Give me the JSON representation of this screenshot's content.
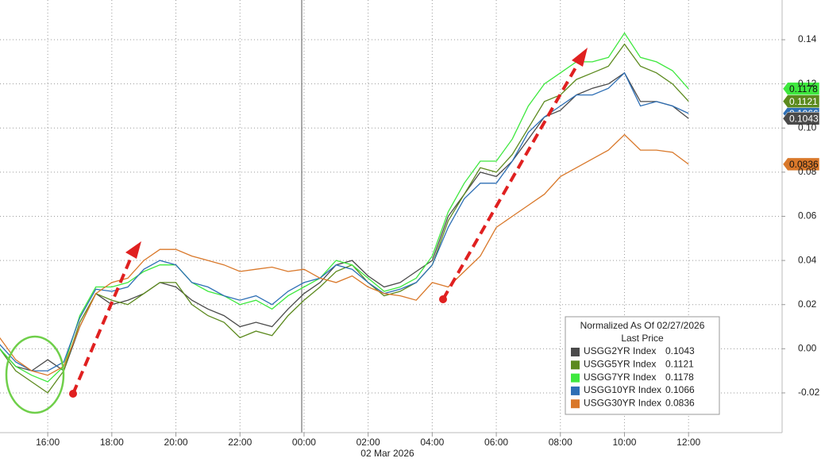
{
  "chart_data": {
    "type": "line",
    "grid": true,
    "legend": {
      "title": "Normalized As Of 02/27/2026",
      "subtitle": "Last Price"
    },
    "date_label": "02 Mar 2026",
    "xlim": [
      14.51,
      38.92
    ],
    "ylim": [
      -0.038,
      0.158
    ],
    "xticks": [
      {
        "value": 16,
        "label": "16:00"
      },
      {
        "value": 18,
        "label": "18:00"
      },
      {
        "value": 20,
        "label": "20:00"
      },
      {
        "value": 22,
        "label": "22:00"
      },
      {
        "value": 24,
        "label": "00:00"
      },
      {
        "value": 26,
        "label": "02:00"
      },
      {
        "value": 28,
        "label": "04:00"
      },
      {
        "value": 30,
        "label": "06:00"
      },
      {
        "value": 32,
        "label": "08:00"
      },
      {
        "value": 34,
        "label": "10:00"
      },
      {
        "value": 36,
        "label": "12:00"
      }
    ],
    "yticks": [
      -0.02,
      {
        "value": 0,
        "label": "0.00"
      },
      0.02,
      0.04,
      0.06,
      0.08,
      {
        "value": 0.1,
        "label": "0.10"
      },
      0.12,
      0.14
    ],
    "x": [
      14.5,
      15,
      15.5,
      16,
      16.5,
      17,
      17.5,
      18,
      18.5,
      19,
      19.5,
      20,
      20.5,
      21,
      21.5,
      22,
      22.5,
      23,
      23.5,
      24,
      24.5,
      25,
      25.5,
      26,
      26.5,
      27,
      27.5,
      28,
      28.5,
      29,
      29.5,
      30,
      30.5,
      31,
      31.5,
      32,
      32.5,
      33,
      33.5,
      34,
      34.5,
      35,
      35.5,
      36
    ],
    "series": [
      {
        "name": "USGG2YR Index",
        "color": "#4a4a4a",
        "values": [
          0.0,
          -0.008,
          -0.01,
          -0.005,
          -0.01,
          0.01,
          0.025,
          0.02,
          0.022,
          0.025,
          0.03,
          0.028,
          0.022,
          0.018,
          0.015,
          0.01,
          0.012,
          0.01,
          0.018,
          0.025,
          0.03,
          0.038,
          0.04,
          0.033,
          0.028,
          0.03,
          0.035,
          0.04,
          0.06,
          0.07,
          0.08,
          0.078,
          0.085,
          0.095,
          0.105,
          0.108,
          0.115,
          0.118,
          0.12,
          0.125,
          0.112,
          0.112,
          0.11,
          0.1043
        ]
      },
      {
        "name": "USGG5YR Index",
        "color": "#5c8a1e",
        "values": [
          0.0,
          -0.01,
          -0.015,
          -0.02,
          -0.01,
          0.012,
          0.025,
          0.022,
          0.02,
          0.025,
          0.03,
          0.03,
          0.02,
          0.015,
          0.012,
          0.005,
          0.008,
          0.006,
          0.015,
          0.022,
          0.028,
          0.035,
          0.038,
          0.03,
          0.024,
          0.026,
          0.03,
          0.038,
          0.058,
          0.07,
          0.082,
          0.08,
          0.088,
          0.1,
          0.112,
          0.115,
          0.122,
          0.125,
          0.128,
          0.138,
          0.128,
          0.125,
          0.12,
          0.1121
        ]
      },
      {
        "name": "USGG7YR Index",
        "color": "#3ee83e",
        "values": [
          0.0,
          -0.008,
          -0.012,
          -0.015,
          -0.008,
          0.015,
          0.028,
          0.028,
          0.03,
          0.035,
          0.038,
          0.038,
          0.03,
          0.026,
          0.024,
          0.02,
          0.022,
          0.018,
          0.024,
          0.028,
          0.032,
          0.04,
          0.038,
          0.032,
          0.026,
          0.028,
          0.032,
          0.042,
          0.062,
          0.075,
          0.085,
          0.085,
          0.095,
          0.11,
          0.12,
          0.125,
          0.13,
          0.13,
          0.132,
          0.143,
          0.132,
          0.13,
          0.126,
          0.1178
        ]
      },
      {
        "name": "USGG10YR Index",
        "color": "#2e6fb5",
        "values": [
          0.002,
          -0.006,
          -0.01,
          -0.01,
          -0.006,
          0.014,
          0.027,
          0.026,
          0.028,
          0.036,
          0.04,
          0.038,
          0.03,
          0.028,
          0.024,
          0.022,
          0.024,
          0.02,
          0.026,
          0.03,
          0.032,
          0.038,
          0.036,
          0.03,
          0.025,
          0.027,
          0.03,
          0.038,
          0.055,
          0.068,
          0.075,
          0.075,
          0.085,
          0.098,
          0.105,
          0.11,
          0.115,
          0.115,
          0.118,
          0.125,
          0.11,
          0.112,
          0.11,
          0.1066
        ]
      },
      {
        "name": "USGG30YR Index",
        "color": "#d9782a",
        "values": [
          0.005,
          -0.005,
          -0.01,
          -0.012,
          -0.008,
          0.01,
          0.025,
          0.03,
          0.032,
          0.04,
          0.045,
          0.045,
          0.042,
          0.04,
          0.038,
          0.035,
          0.036,
          0.037,
          0.035,
          0.036,
          0.032,
          0.03,
          0.033,
          0.028,
          0.025,
          0.024,
          0.022,
          0.03,
          0.028,
          0.035,
          0.042,
          0.055,
          0.06,
          0.065,
          0.07,
          0.078,
          0.082,
          0.086,
          0.09,
          0.097,
          0.09,
          0.09,
          0.089,
          0.0836
        ]
      }
    ]
  }
}
